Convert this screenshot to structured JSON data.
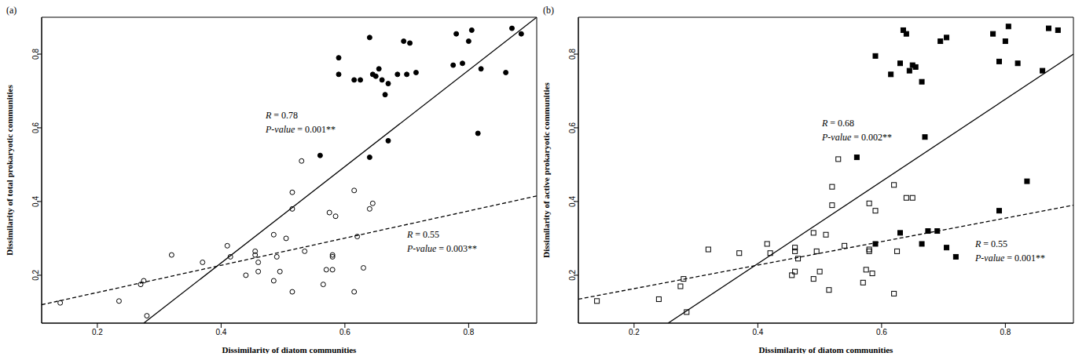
{
  "chart_data": [
    {
      "type": "scatter",
      "title": "(a)",
      "x_label": "Dissimilarity of diatom communities",
      "y_label": "Dissimilarity of total prokaryotic communities",
      "xlim": [
        0.11,
        0.91
      ],
      "xticks": [
        0.2,
        0.4,
        0.6,
        0.8
      ],
      "ylim": [
        0.07,
        0.9
      ],
      "yticks": [
        0.2,
        0.4,
        0.6,
        0.8
      ],
      "annotations": [
        "R = 0.78",
        "P-value = 0.001**",
        "R = 0.55",
        "P-value = 0.003**"
      ],
      "series": [
        {
          "type": "scatter",
          "marker": "open_circle",
          "color": "#000000",
          "x": [
            0.14,
            0.235,
            0.27,
            0.275,
            0.28,
            0.32,
            0.37,
            0.41,
            0.415,
            0.44,
            0.455,
            0.455,
            0.46,
            0.46,
            0.485,
            0.485,
            0.49,
            0.495,
            0.505,
            0.515,
            0.515,
            0.515,
            0.53,
            0.535,
            0.565,
            0.57,
            0.575,
            0.58,
            0.58,
            0.58,
            0.585,
            0.615,
            0.615,
            0.62,
            0.63,
            0.64,
            0.645
          ],
          "values": [
            0.125,
            0.13,
            0.175,
            0.185,
            0.09,
            0.255,
            0.235,
            0.28,
            0.25,
            0.2,
            0.255,
            0.265,
            0.21,
            0.235,
            0.31,
            0.185,
            0.25,
            0.21,
            0.3,
            0.155,
            0.38,
            0.425,
            0.51,
            0.265,
            0.175,
            0.215,
            0.37,
            0.255,
            0.25,
            0.215,
            0.36,
            0.43,
            0.155,
            0.305,
            0.22,
            0.38,
            0.395
          ]
        },
        {
          "type": "scatter",
          "marker": "circle",
          "color": "#000000",
          "x": [
            0.56,
            0.59,
            0.59,
            0.615,
            0.625,
            0.64,
            0.645,
            0.65,
            0.655,
            0.66,
            0.665,
            0.67,
            0.67,
            0.64,
            0.685,
            0.695,
            0.7,
            0.705,
            0.715,
            0.775,
            0.78,
            0.79,
            0.8,
            0.805,
            0.815,
            0.82,
            0.86,
            0.87,
            0.885
          ],
          "values": [
            0.525,
            0.79,
            0.745,
            0.73,
            0.73,
            0.845,
            0.745,
            0.74,
            0.76,
            0.73,
            0.69,
            0.72,
            0.565,
            0.52,
            0.745,
            0.835,
            0.745,
            0.83,
            0.75,
            0.77,
            0.855,
            0.775,
            0.835,
            0.865,
            0.585,
            0.76,
            0.75,
            0.87,
            0.855
          ]
        },
        {
          "type": "line",
          "line_style": "solid",
          "color": "#000000",
          "x": [
            0.275,
            0.91
          ],
          "values": [
            0.07,
            0.9
          ]
        },
        {
          "type": "line",
          "line_style": "dashed",
          "color": "#000000",
          "x": [
            0.11,
            0.91
          ],
          "values": [
            0.12,
            0.415
          ]
        }
      ]
    },
    {
      "type": "scatter",
      "title": "(b)",
      "x_label": "Dissimilarity of diatom communities",
      "y_label": "Dissimilarity of active prokaryotic communities",
      "xlim": [
        0.11,
        0.91
      ],
      "xticks": [
        0.2,
        0.4,
        0.6,
        0.8
      ],
      "ylim": [
        0.07,
        0.9
      ],
      "yticks": [
        0.2,
        0.4,
        0.6,
        0.8
      ],
      "annotations": [
        "R = 0.68",
        "P-value = 0.002**",
        "R = 0.55",
        "P-value = 0.001**"
      ],
      "series": [
        {
          "type": "scatter",
          "marker": "open_square",
          "color": "#000000",
          "x": [
            0.14,
            0.24,
            0.275,
            0.28,
            0.285,
            0.32,
            0.37,
            0.415,
            0.42,
            0.455,
            0.46,
            0.46,
            0.46,
            0.465,
            0.49,
            0.49,
            0.495,
            0.5,
            0.51,
            0.515,
            0.52,
            0.52,
            0.53,
            0.54,
            0.57,
            0.575,
            0.58,
            0.58,
            0.58,
            0.585,
            0.59,
            0.62,
            0.62,
            0.625,
            0.64,
            0.65
          ],
          "values": [
            0.13,
            0.135,
            0.17,
            0.19,
            0.1,
            0.27,
            0.26,
            0.285,
            0.26,
            0.2,
            0.275,
            0.265,
            0.21,
            0.245,
            0.315,
            0.19,
            0.265,
            0.21,
            0.31,
            0.16,
            0.39,
            0.44,
            0.515,
            0.28,
            0.18,
            0.215,
            0.395,
            0.27,
            0.265,
            0.205,
            0.375,
            0.445,
            0.15,
            0.265,
            0.41,
            0.41
          ]
        },
        {
          "type": "scatter",
          "marker": "square",
          "color": "#000000",
          "x": [
            0.56,
            0.59,
            0.615,
            0.63,
            0.635,
            0.64,
            0.645,
            0.65,
            0.655,
            0.665,
            0.67,
            0.63,
            0.665,
            0.675,
            0.69,
            0.695,
            0.705,
            0.705,
            0.72,
            0.78,
            0.79,
            0.8,
            0.805,
            0.82,
            0.835,
            0.79,
            0.86,
            0.87,
            0.885,
            0.59
          ],
          "values": [
            0.52,
            0.795,
            0.745,
            0.775,
            0.865,
            0.855,
            0.755,
            0.77,
            0.765,
            0.725,
            0.575,
            0.315,
            0.285,
            0.32,
            0.32,
            0.835,
            0.845,
            0.275,
            0.25,
            0.855,
            0.78,
            0.835,
            0.875,
            0.775,
            0.455,
            0.375,
            0.755,
            0.87,
            0.865,
            0.285
          ]
        },
        {
          "type": "line",
          "line_style": "solid",
          "color": "#000000",
          "x": [
            0.255,
            0.91
          ],
          "values": [
            0.07,
            0.8
          ]
        },
        {
          "type": "line",
          "line_style": "dashed",
          "color": "#000000",
          "x": [
            0.11,
            0.91
          ],
          "values": [
            0.135,
            0.39
          ]
        }
      ]
    }
  ]
}
